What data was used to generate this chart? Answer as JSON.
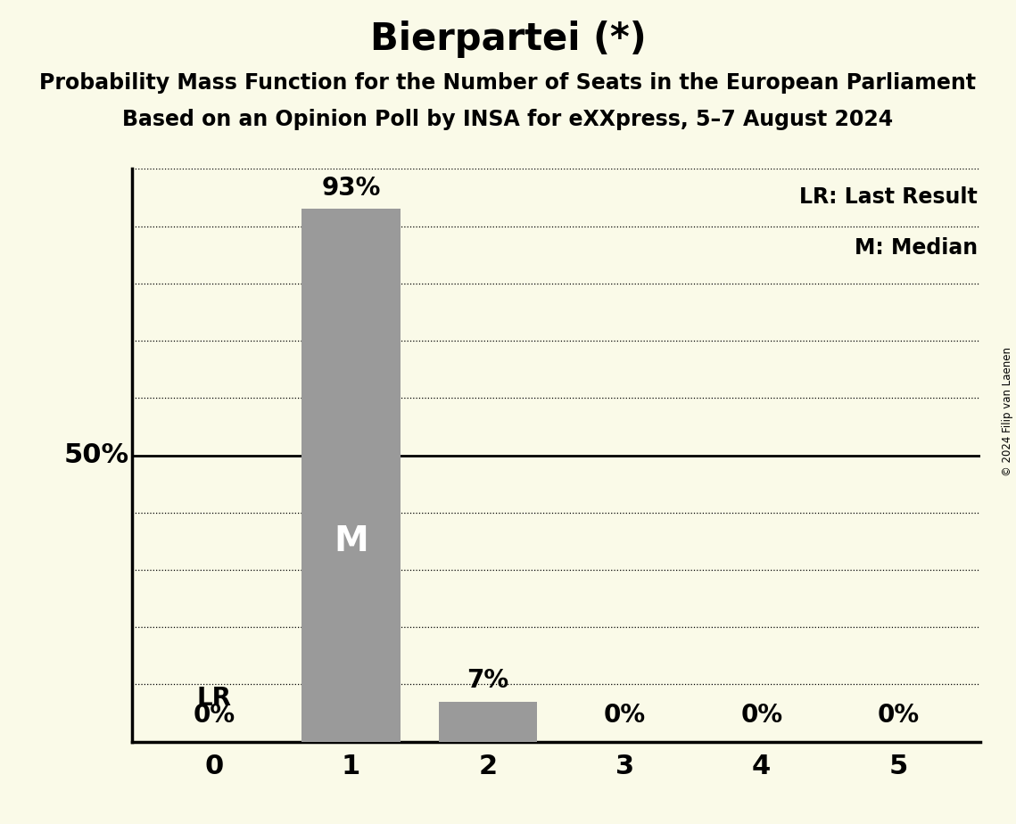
{
  "title": "Bierpartei (*)",
  "subtitle1": "Probability Mass Function for the Number of Seats in the European Parliament",
  "subtitle2": "Based on an Opinion Poll by INSA for eXXpress, 5–7 August 2024",
  "copyright": "© 2024 Filip van Laenen",
  "categories": [
    0,
    1,
    2,
    3,
    4,
    5
  ],
  "values": [
    0,
    93,
    7,
    0,
    0,
    0
  ],
  "bar_color": "#9a9a9a",
  "background_color": "#fafae8",
  "median_seat": 1,
  "lr_seat": 0,
  "ylabel_50": "50%",
  "legend_lr": "LR: Last Result",
  "legend_m": "M: Median",
  "ylim": [
    0,
    100
  ],
  "yticks_dotted": [
    10,
    20,
    30,
    40,
    60,
    70,
    80,
    90,
    100
  ],
  "ytick_solid": 50,
  "title_fontsize": 30,
  "subtitle_fontsize": 17,
  "bar_label_fontsize": 20,
  "axis_tick_fontsize": 22,
  "legend_fontsize": 17,
  "ylabel_fontsize": 22,
  "m_fontsize": 28,
  "lr_fontsize": 20
}
